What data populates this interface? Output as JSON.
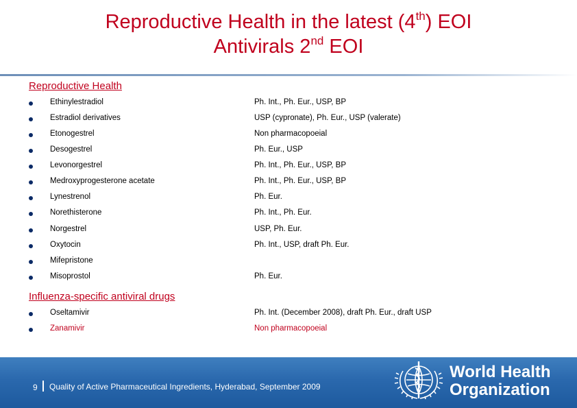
{
  "title": {
    "line1_prefix": "Reproductive Health in the latest (4",
    "line1_sup": "th",
    "line1_suffix": ") EOI",
    "line2_prefix": "Antivirals 2",
    "line2_sup": "nd",
    "line2_suffix": " EOI"
  },
  "sections": [
    {
      "heading": "Reproductive Health",
      "items": [
        {
          "drug": "Ethinylestradiol",
          "pharmacopoeia": "Ph. Int., Ph. Eur., USP, BP"
        },
        {
          "drug": "Estradiol derivatives",
          "pharmacopoeia": "USP (cypronate), Ph. Eur., USP (valerate)"
        },
        {
          "drug": "Etonogestrel",
          "pharmacopoeia": "Non pharmacopoeial"
        },
        {
          "drug": "Desogestrel",
          "pharmacopoeia": "Ph. Eur., USP"
        },
        {
          "drug": "Levonorgestrel",
          "pharmacopoeia": "Ph. Int., Ph. Eur., USP, BP"
        },
        {
          "drug": "Medroxyprogesterone acetate",
          "pharmacopoeia": "Ph. Int., Ph. Eur., USP, BP"
        },
        {
          "drug": "Lynestrenol",
          "pharmacopoeia": "Ph. Eur."
        },
        {
          "drug": "Norethisterone",
          "pharmacopoeia": "Ph. Int., Ph. Eur."
        },
        {
          "drug": "Norgestrel",
          "pharmacopoeia": "USP, Ph. Eur."
        },
        {
          "drug": "Oxytocin",
          "pharmacopoeia": "Ph. Int., USP, draft Ph. Eur."
        },
        {
          "drug": "Mifepristone",
          "pharmacopoeia": ""
        },
        {
          "drug": "Misoprostol",
          "pharmacopoeia": "Ph. Eur."
        }
      ]
    },
    {
      "heading": "Influenza-specific antiviral drugs",
      "items": [
        {
          "drug": "Oseltamivir",
          "pharmacopoeia": "Ph. Int. (December 2008), draft Ph. Eur., draft USP"
        },
        {
          "drug": "Zanamivir",
          "pharmacopoeia": "Non pharmacopoeial",
          "highlight": true
        }
      ]
    }
  ],
  "footer": {
    "page_number": "9",
    "text": "Quality of Active Pharmaceutical Ingredients, Hyderabad, September 2009"
  },
  "logo": {
    "line1": "World Health",
    "line2": "Organization",
    "icon": "who-emblem-icon"
  },
  "colors": {
    "title": "#c0001d",
    "bullet": "#0b2a66",
    "footer": "#2a68ad"
  }
}
